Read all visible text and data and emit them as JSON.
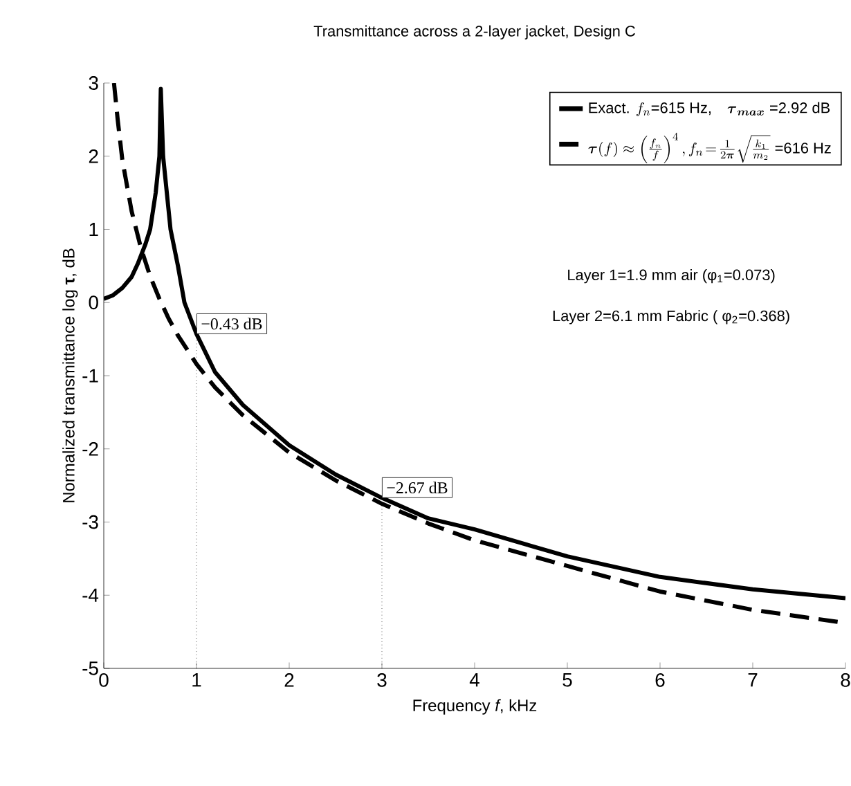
{
  "chart_data": {
    "type": "line",
    "title": "Transmittance across a  2-layer jacket, Design C",
    "xlabel": "Frequency *f*, kHz",
    "ylabel": "Normalized transmittance  log **τ**, dB",
    "xlim": [
      0,
      8
    ],
    "ylim": [
      -5,
      3
    ],
    "xticks": [
      0,
      1,
      2,
      3,
      4,
      5,
      6,
      7,
      8
    ],
    "yticks": [
      -5,
      -4,
      -3,
      -2,
      -1,
      0,
      1,
      2,
      3
    ],
    "grid": false,
    "legend": "top right",
    "marker": "none",
    "series": [
      {
        "name": "\\mbox{Exact. }f_n\\mbox{=615 Hz,}\\quad \\boldsymbol{\\tau}_{\\boldsymbol{max}}\\mbox{ =2.92 dB}",
        "color": "#000000",
        "line_style": "solid",
        "x": [
          0,
          0.1,
          0.2,
          0.3,
          0.37,
          0.45,
          0.5,
          0.56,
          0.6,
          0.615,
          0.64,
          0.68,
          0.72,
          0.8,
          0.87,
          1,
          1.2,
          1.5,
          2,
          2.5,
          3,
          3.5,
          4,
          5,
          6,
          7,
          8
        ],
        "values": [
          0.05,
          0.1,
          0.2,
          0.35,
          0.54,
          0.8,
          1.0,
          1.5,
          2.0,
          2.92,
          2.0,
          1.5,
          1.0,
          0.5,
          0,
          -0.43,
          -0.95,
          -1.4,
          -1.95,
          -2.35,
          -2.67,
          -2.95,
          -3.1,
          -3.47,
          -3.75,
          -3.92,
          -4.04
        ]
      },
      {
        "name": "\\boldsymbol{\\tau}(f)\\approx\\left(\\frac{f_n}{f}\\right)^4, f_n\\!=\\!\\frac{1}{2\\boldsymbol{\\pi}}\\sqrt{\\frac{k_1}{m_2}}\\mbox{ =616 Hz}",
        "color": "#000000",
        "line_style": "dashed",
        "x": [
          0.11,
          0.15,
          0.2,
          0.3,
          0.4,
          0.5,
          0.6,
          0.7,
          0.8,
          1,
          1.2,
          1.5,
          2,
          2.5,
          3,
          3.5,
          4,
          5,
          6,
          7,
          8
        ],
        "values": [
          3,
          2.5,
          1.95,
          1.25,
          0.75,
          0.36,
          0.05,
          -0.22,
          -0.45,
          -0.84,
          -1.16,
          -1.54,
          -2.05,
          -2.43,
          -2.75,
          -3.02,
          -3.25,
          -3.6,
          -3.95,
          -4.2,
          -4.38
        ]
      }
    ],
    "annotations": [
      "Layer 1=1.9 mm air (φ$_{1}$=0.073)",
      "Layer 2=6.1 mm Fabric ( φ$_{2}$=0.368)",
      {
        "text": "−0.43 dB",
        "x": 1,
        "y": -0.43
      },
      {
        "text": "−2.67 dB",
        "x": 3,
        "y": -2.67
      }
    ]
  }
}
